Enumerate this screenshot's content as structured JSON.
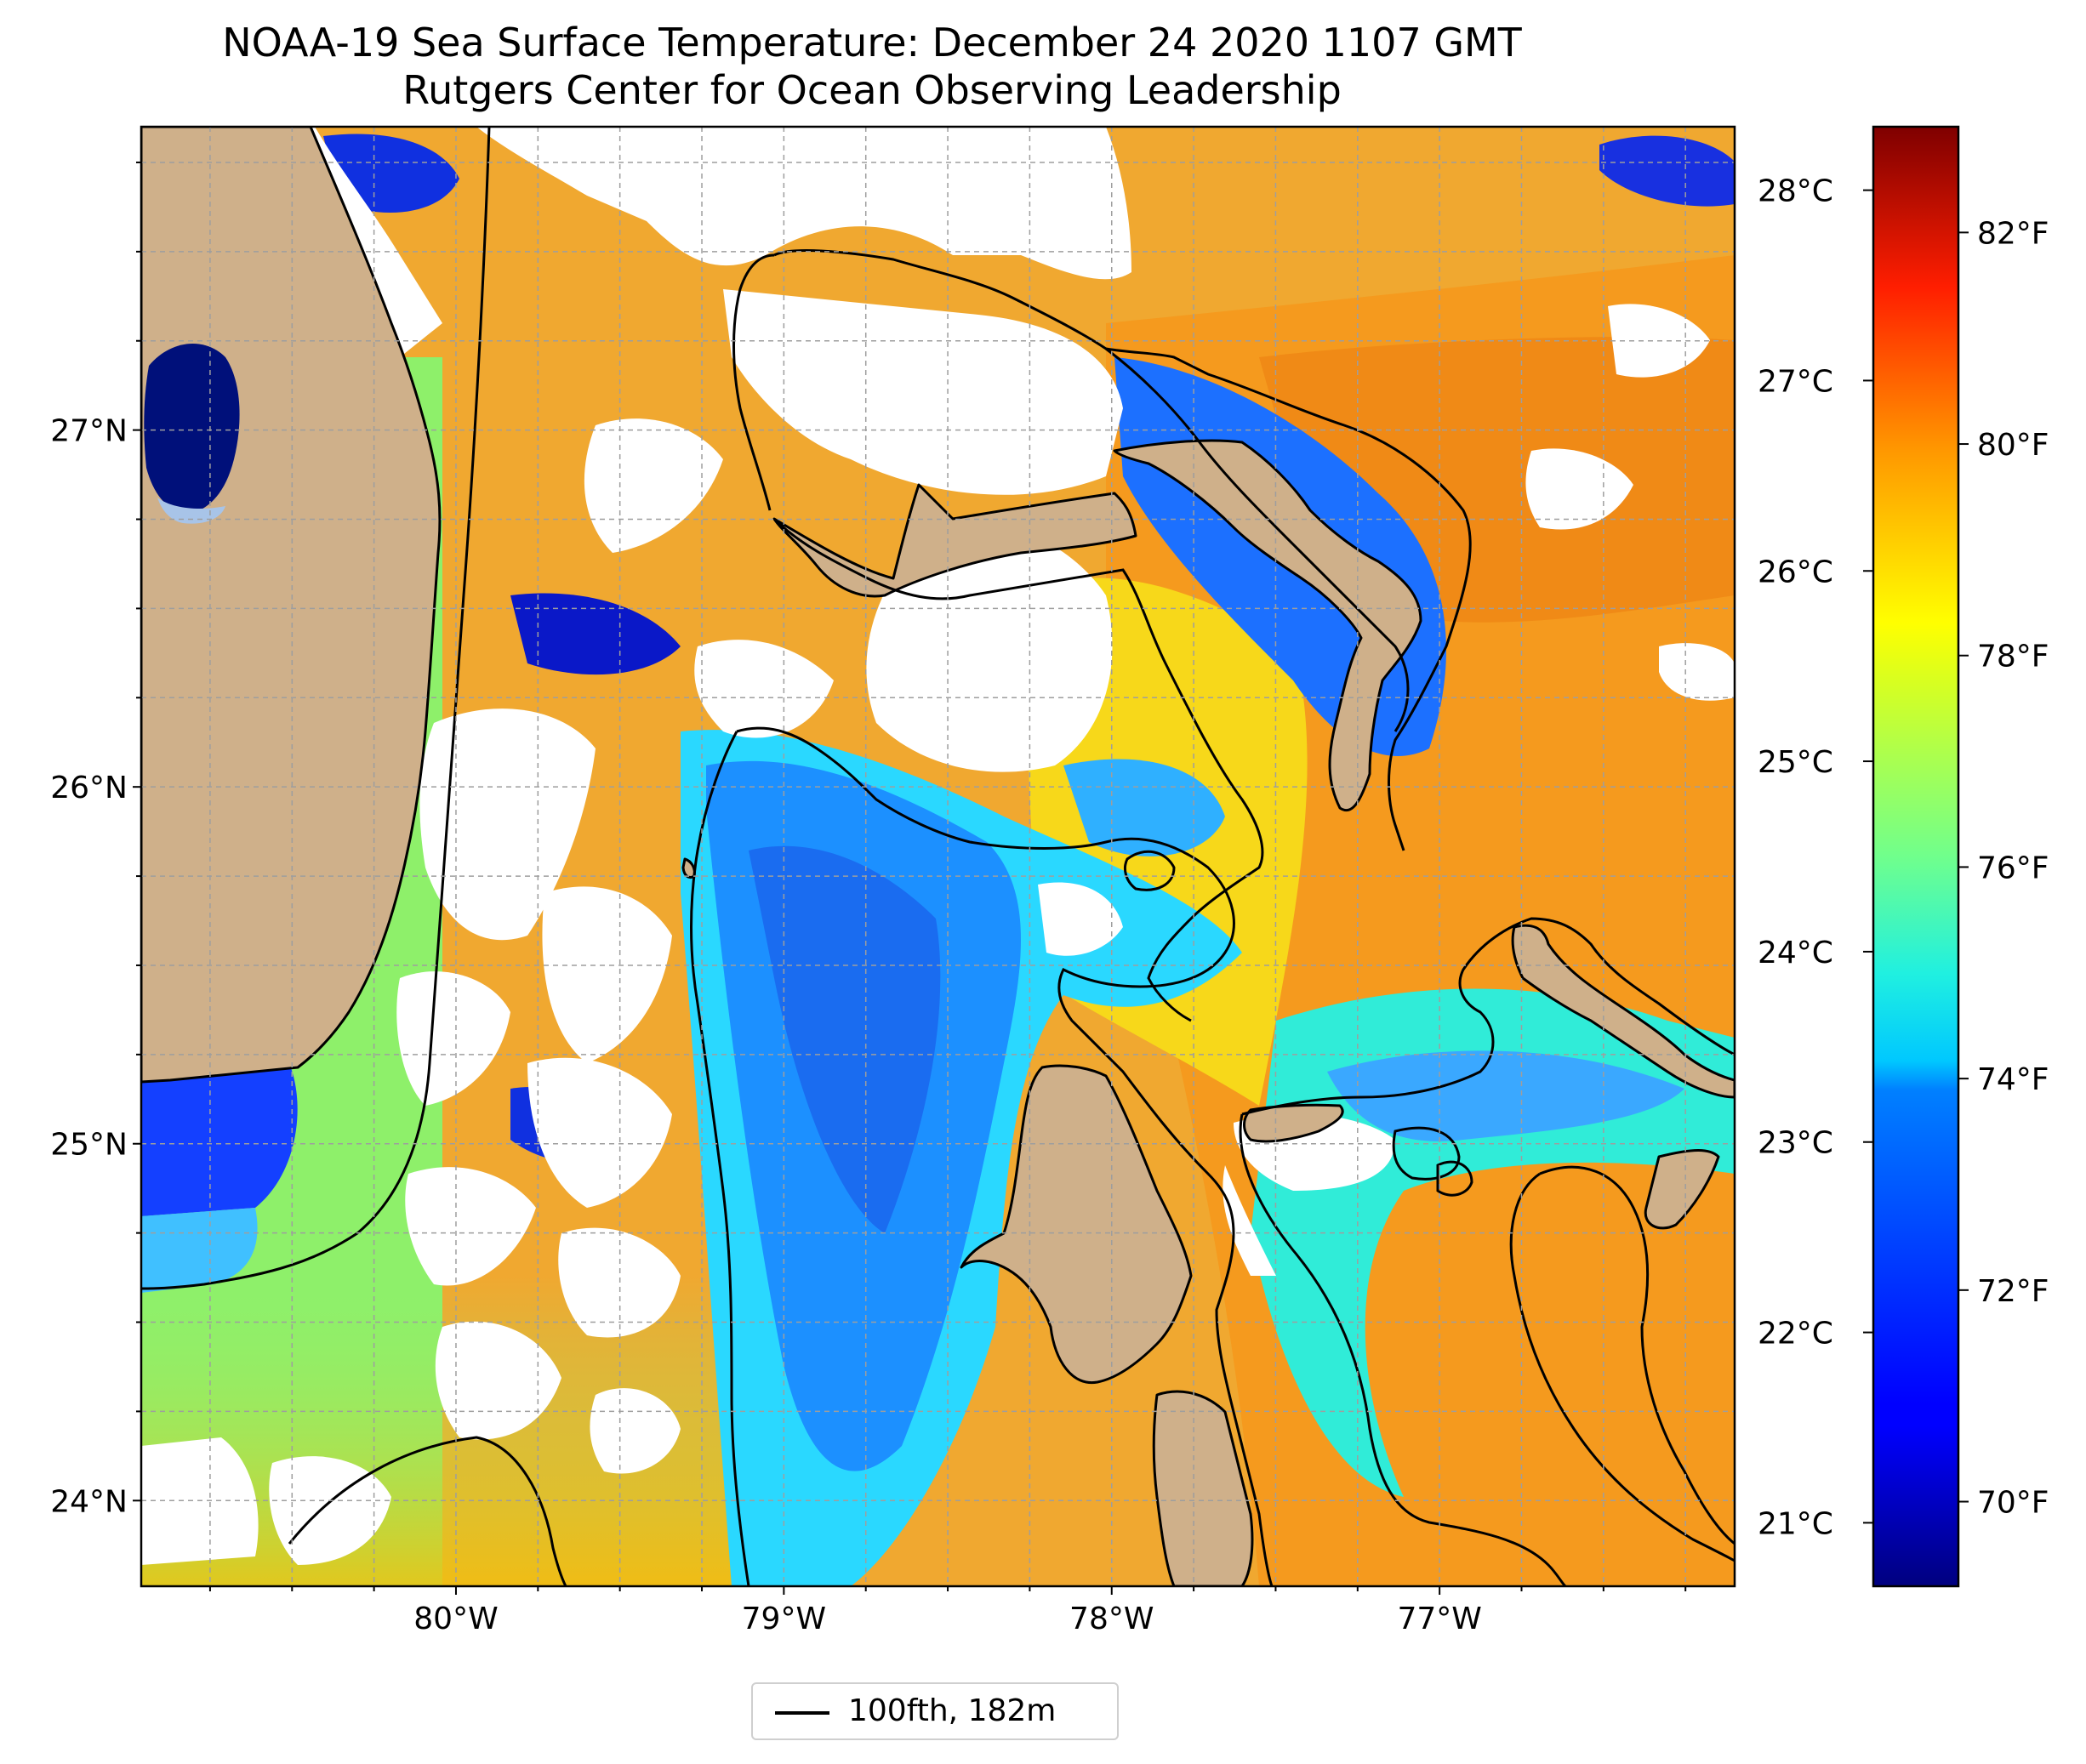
{
  "title": {
    "line1": "NOAA-19 Sea Surface Temperature: December 24 2020 1107 GMT",
    "line2": "Rutgers Center for Ocean Observing Leadership"
  },
  "map": {
    "lon_range": [
      -80.96,
      -76.1
    ],
    "lat_range": [
      23.76,
      27.85
    ],
    "lat_ticks": [
      {
        "value": 24,
        "label": "24°N"
      },
      {
        "value": 25,
        "label": "25°N"
      },
      {
        "value": 26,
        "label": "26°N"
      },
      {
        "value": 27,
        "label": "27°N"
      }
    ],
    "lon_ticks": [
      {
        "value": -80,
        "label": "80°W"
      },
      {
        "value": -79,
        "label": "79°W"
      },
      {
        "value": -78,
        "label": "78°W"
      },
      {
        "value": -77,
        "label": "77°W"
      }
    ],
    "gridlines": true,
    "land_color": "#cfb08a",
    "missing_data_color": "#ffffff",
    "contour_color": "#000000"
  },
  "colorbar": {
    "colormap": "jet",
    "range_f": [
      69.2,
      83.0
    ],
    "fahrenheit_ticks": [
      {
        "value": 70,
        "label": "70°F"
      },
      {
        "value": 72,
        "label": "72°F"
      },
      {
        "value": 74,
        "label": "74°F"
      },
      {
        "value": 76,
        "label": "76°F"
      },
      {
        "value": 78,
        "label": "78°F"
      },
      {
        "value": 80,
        "label": "80°F"
      },
      {
        "value": 82,
        "label": "82°F"
      }
    ],
    "celsius_ticks": [
      {
        "value": 21,
        "label": "21°C"
      },
      {
        "value": 22,
        "label": "22°C"
      },
      {
        "value": 23,
        "label": "23°C"
      },
      {
        "value": 24,
        "label": "24°C"
      },
      {
        "value": 25,
        "label": "25°C"
      },
      {
        "value": 26,
        "label": "26°C"
      },
      {
        "value": 27,
        "label": "27°C"
      },
      {
        "value": 28,
        "label": "28°C"
      }
    ]
  },
  "legend": {
    "label": "100fth, 182m",
    "placement": "bottom-center"
  }
}
